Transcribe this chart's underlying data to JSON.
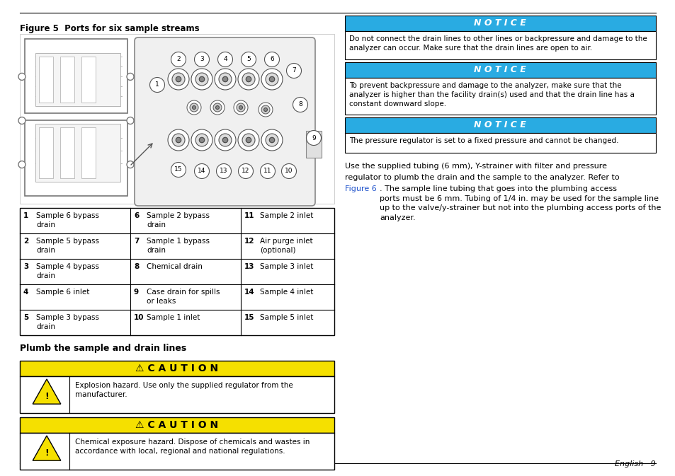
{
  "page_bg": "#ffffff",
  "figure_title": "Figure 5  Ports for six sample streams",
  "section_title": "Plumb the sample and drain lines",
  "notice_bg": "#29abe2",
  "notice_text_color": "#ffffff",
  "caution_bg": "#f5e000",
  "caution_title_1": "⚠ CAUTION",
  "notices_right": [
    {
      "title": "N O T I C E",
      "body": "Do not connect the drain lines to other lines or backpressure and damage to the\nanalyzer can occur. Make sure that the drain lines are open to air."
    },
    {
      "title": "N O T I C E",
      "body": "To prevent backpressure and damage to the analyzer, make sure that the\nanalyzer is higher than the facility drain(s) used and that the drain line has a\nconstant downward slope."
    },
    {
      "title": "N O T I C E",
      "body": "The pressure regulator is set to a fixed pressure and cannot be changed."
    }
  ],
  "cautions_left": [
    {
      "title": "⚠ C A U T I O N",
      "body": "Explosion hazard. Use only the supplied regulator from the\nmanufacturer."
    },
    {
      "title": "⚠ C A U T I O N",
      "body": "Chemical exposure hazard. Dispose of chemicals and wastes in\naccordance with local, regional and national regulations."
    }
  ],
  "table_data": [
    [
      "1",
      "Sample 6 bypass\ndrain",
      "6",
      "Sample 2 bypass\ndrain",
      "11",
      "Sample 2 inlet"
    ],
    [
      "2",
      "Sample 5 bypass\ndrain",
      "7",
      "Sample 1 bypass\ndrain",
      "12",
      "Air purge inlet\n(optional)"
    ],
    [
      "3",
      "Sample 4 bypass\ndrain",
      "8",
      "Chemical drain",
      "13",
      "Sample 3 inlet"
    ],
    [
      "4",
      "Sample 6 inlet",
      "9",
      "Case drain for spills\nor leaks",
      "14",
      "Sample 4 inlet"
    ],
    [
      "5",
      "Sample 3 bypass\ndrain",
      "10",
      "Sample 1 inlet",
      "15",
      "Sample 5 inlet"
    ]
  ],
  "footer_text": "English   9",
  "right_para_line1": "Use the supplied tubing (6 mm), Y-strainer with filter and pressure",
  "right_para_line2": "regulator to plumb the drain and the sample to the analyzer. Refer to",
  "right_para_link": "Figure 6",
  "right_para_rest": ". The sample line tubing that goes into the plumbing access\nports must be 6 mm. Tubing of 1/4 in. may be used for the sample line\nup to the valve/y-strainer but not into the plumbing access ports of the\nanalyzer."
}
